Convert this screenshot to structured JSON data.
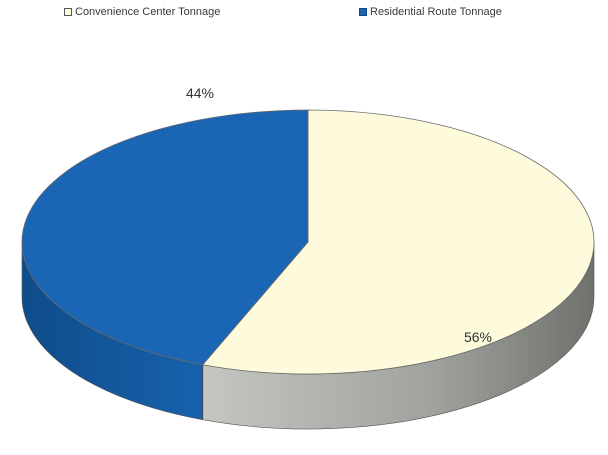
{
  "chart_data": {
    "type": "pie",
    "categories": [
      "Convenience Center Tonnage",
      "Residential Route Tonnage"
    ],
    "values": [
      56,
      44
    ],
    "data_labels": [
      "56%",
      "44%"
    ],
    "colors": [
      "#fdfbdc",
      "#1a66b5"
    ],
    "side_colors": [
      "#8f918e",
      "#11508f"
    ],
    "legend_position": "top",
    "three_d": true
  }
}
